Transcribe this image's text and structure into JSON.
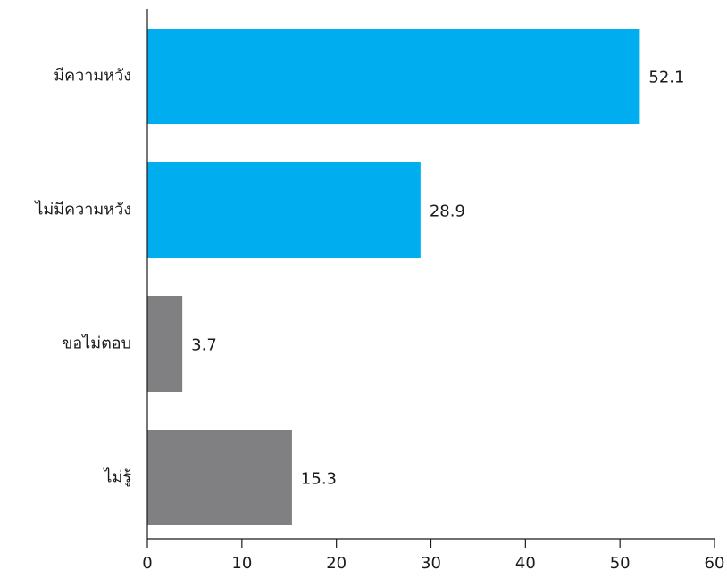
{
  "chart_data": {
    "type": "bar",
    "orientation": "horizontal",
    "categories": [
      "มีความหวัง",
      "ไม่มีความหวัง",
      "ขอไม่ตอบ",
      "ไม่รู้"
    ],
    "values": [
      52.1,
      28.9,
      3.7,
      15.3
    ],
    "value_labels": [
      "52.1",
      "28.9",
      "3.7",
      "15.3"
    ],
    "bar_colors": [
      "#00AEEF",
      "#00AEEF",
      "#808083",
      "#808083"
    ],
    "xlim": [
      0,
      60
    ],
    "xticks": [
      0,
      10,
      20,
      30,
      40,
      50,
      60
    ],
    "xtick_labels": [
      "0",
      "10",
      "20",
      "30",
      "40",
      "50",
      "60"
    ],
    "grid": false,
    "legend": "none"
  }
}
